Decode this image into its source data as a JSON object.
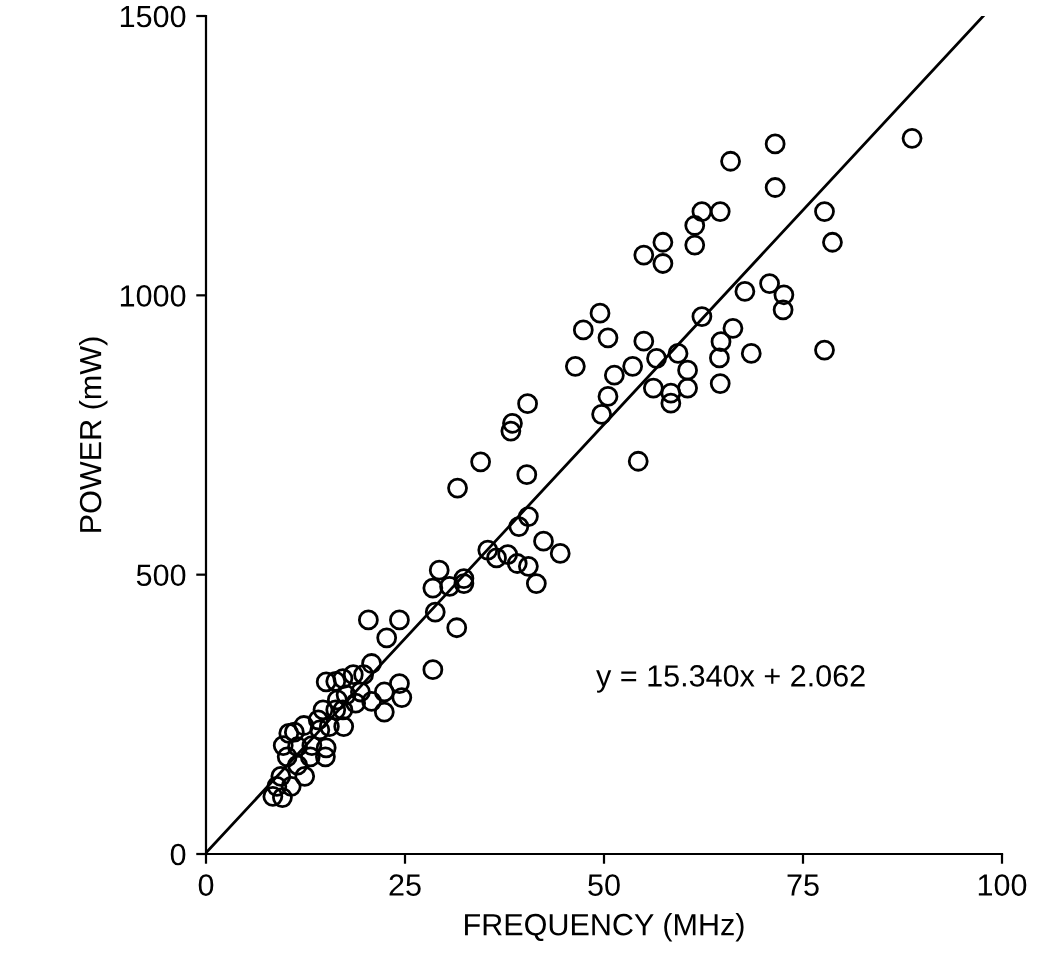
{
  "chart_data": {
    "type": "scatter",
    "xlabel": "FREQUENCY (MHz)",
    "ylabel": "POWER (mW)",
    "xlim": [
      0,
      100
    ],
    "ylim": [
      0,
      1500
    ],
    "xticks": [
      0,
      25,
      50,
      75,
      100
    ],
    "yticks": [
      0,
      500,
      1000,
      1500
    ],
    "grid": false,
    "legend": false,
    "annotations": [
      "y = 15.340x + 2.062"
    ],
    "series": [
      {
        "marker": "circle",
        "color": "#000000",
        "x": [
          8.4,
          9.6,
          8.9,
          10.7,
          9.4,
          12.4,
          11.5,
          10.2,
          13.1,
          15.0,
          9.7,
          11.5,
          13.3,
          15.1,
          10.4,
          11.1,
          12.3,
          14.3,
          15.5,
          14.1,
          14.7,
          16.3,
          17.3,
          17.2,
          18.8,
          16.5,
          17.6,
          19.4,
          20.8,
          22.4,
          22.4,
          24.6,
          24.3,
          15.1,
          16.3,
          17.2,
          18.5,
          19.8,
          20.8,
          22.7,
          20.4,
          24.3,
          28.5,
          28.8,
          28.5,
          29.3,
          30.6,
          31.5,
          32.4,
          32.4,
          31.6,
          35.4,
          36.5,
          37.9,
          39.1,
          40.5,
          41.5,
          39.3,
          40.5,
          42.4,
          44.5,
          40.3,
          34.5,
          38.5,
          38.3,
          40.4,
          49.7,
          50.5,
          46.4,
          49.5,
          47.4,
          50.5,
          55.0,
          51.3,
          53.6,
          54.3,
          56.6,
          59.3,
          60.5,
          56.2,
          58.4,
          58.4,
          60.5,
          62.3,
          66.2,
          64.7,
          64.5,
          68.5,
          64.6,
          67.7,
          70.8,
          72.6,
          72.5,
          77.7,
          77.7,
          78.7,
          71.5,
          71.5,
          65.9,
          62.3,
          64.6,
          61.4,
          61.4,
          57.4,
          55.0,
          57.4,
          88.7
        ],
        "values": [
          103,
          101,
          121,
          121,
          139,
          139,
          159,
          174,
          174,
          174,
          194,
          192,
          194,
          190,
          216,
          218,
          230,
          222,
          228,
          240,
          258,
          258,
          228,
          258,
          270,
          276,
          285,
          290,
          273,
          254,
          290,
          280,
          305,
          308,
          309,
          314,
          321,
          321,
          341,
          387,
          419,
          419,
          330,
          433,
          476,
          508,
          479,
          405,
          493,
          484,
          655,
          544,
          530,
          536,
          520,
          515,
          484,
          586,
          604,
          560,
          538,
          679,
          702,
          771,
          757,
          806,
          787,
          819,
          873,
          968,
          938,
          924,
          918,
          857,
          873,
          703,
          887,
          896,
          866,
          834,
          825,
          807,
          834,
          962,
          941,
          917,
          888,
          896,
          842,
          1007,
          1021,
          1001,
          974,
          902,
          1150,
          1095,
          1271,
          1193,
          1240,
          1150,
          1150,
          1125,
          1090,
          1095,
          1072,
          1057,
          1281
        ]
      },
      {
        "type": "line",
        "marker": "none",
        "color": "#000000",
        "x": [
          0,
          97.65
        ],
        "values": [
          2.1,
          1500
        ]
      }
    ]
  }
}
